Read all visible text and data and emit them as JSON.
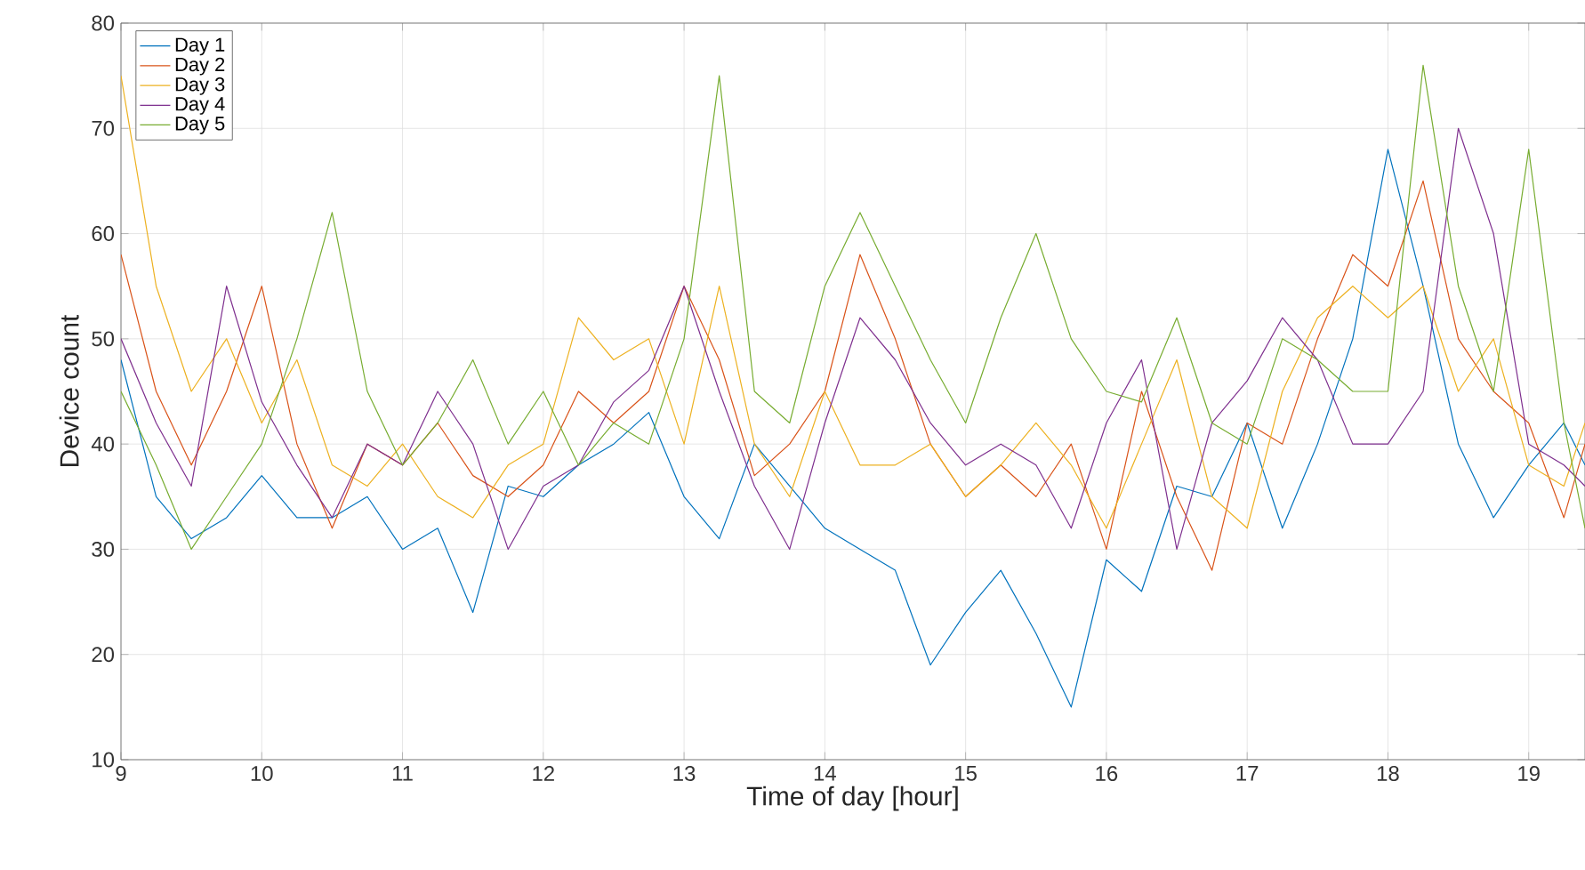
{
  "chart_data": {
    "type": "line",
    "xlabel": "Time of day [hour]",
    "ylabel": "Device count",
    "x": [
      9,
      9.25,
      9.5,
      9.75,
      10,
      10.25,
      10.5,
      10.75,
      11,
      11.25,
      11.5,
      11.75,
      12,
      12.25,
      12.5,
      12.75,
      13,
      13.25,
      13.5,
      13.75,
      14,
      14.25,
      14.5,
      14.75,
      15,
      15.25,
      15.5,
      15.75,
      16,
      16.25,
      16.5,
      16.75,
      17,
      17.25,
      17.5,
      17.75,
      18,
      18.25,
      18.5,
      18.75,
      19,
      19.25,
      19.4
    ],
    "series": [
      {
        "name": "Day 1",
        "color": "#0072bd",
        "values": [
          48,
          35,
          31,
          33,
          37,
          33,
          33,
          35,
          30,
          32,
          24,
          36,
          35,
          38,
          40,
          43,
          35,
          31,
          40,
          36,
          32,
          30,
          28,
          19,
          24,
          28,
          22,
          15,
          29,
          26,
          36,
          35,
          42,
          32,
          40,
          50,
          68,
          55,
          40,
          33,
          38,
          42,
          38
        ]
      },
      {
        "name": "Day 2",
        "color": "#d95319",
        "values": [
          58,
          45,
          38,
          45,
          55,
          40,
          32,
          40,
          38,
          42,
          37,
          35,
          38,
          45,
          42,
          45,
          55,
          48,
          37,
          40,
          45,
          58,
          50,
          40,
          35,
          38,
          35,
          40,
          30,
          45,
          35,
          28,
          42,
          40,
          50,
          58,
          55,
          65,
          50,
          45,
          42,
          33,
          40
        ]
      },
      {
        "name": "Day 3",
        "color": "#edb120",
        "values": [
          75,
          55,
          45,
          50,
          42,
          48,
          38,
          36,
          40,
          35,
          33,
          38,
          40,
          52,
          48,
          50,
          40,
          55,
          40,
          35,
          45,
          38,
          38,
          40,
          35,
          38,
          42,
          38,
          32,
          40,
          48,
          35,
          32,
          45,
          52,
          55,
          52,
          55,
          45,
          50,
          38,
          36,
          42
        ]
      },
      {
        "name": "Day 4",
        "color": "#7e2f8e",
        "values": [
          50,
          42,
          36,
          55,
          44,
          38,
          33,
          40,
          38,
          45,
          40,
          30,
          36,
          38,
          44,
          47,
          55,
          45,
          36,
          30,
          42,
          52,
          48,
          42,
          38,
          40,
          38,
          32,
          42,
          48,
          30,
          42,
          46,
          52,
          48,
          40,
          40,
          45,
          70,
          60,
          40,
          38,
          36
        ]
      },
      {
        "name": "Day 5",
        "color": "#77ac30",
        "values": [
          45,
          38,
          30,
          35,
          40,
          50,
          62,
          45,
          38,
          42,
          48,
          40,
          45,
          38,
          42,
          40,
          50,
          75,
          45,
          42,
          55,
          62,
          55,
          48,
          42,
          52,
          60,
          50,
          45,
          44,
          52,
          42,
          40,
          50,
          48,
          45,
          45,
          76,
          55,
          45,
          68,
          42,
          32
        ]
      }
    ],
    "xlim": [
      9,
      19.4
    ],
    "ylim": [
      10,
      80
    ],
    "xticks": [
      9,
      10,
      11,
      12,
      13,
      14,
      15,
      16,
      17,
      18,
      19
    ],
    "yticks": [
      10,
      20,
      30,
      40,
      50,
      60,
      70,
      80
    ],
    "grid": true,
    "legend": "top left"
  }
}
